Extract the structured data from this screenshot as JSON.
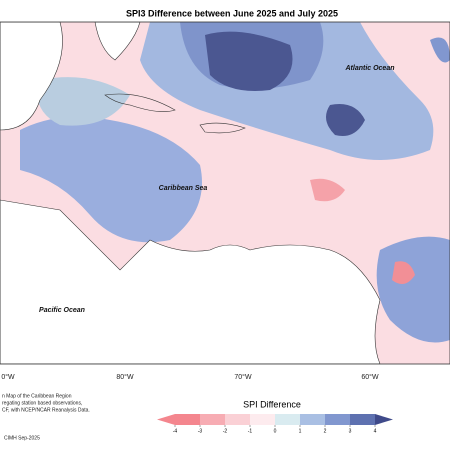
{
  "map": {
    "title": "SPI3 Difference between June 2025 and July 2025",
    "labels": [
      "Atlantic Ocean",
      "Caribbean Sea",
      "Pacific Ocean"
    ],
    "longitudes": [
      "0°W",
      "80°W",
      "70°W",
      "60°W"
    ],
    "footnote": [
      "n Map of the Caribbean Region",
      "regating station based observations,",
      "CF, with NCEP/NCAR Reanalysis Data."
    ],
    "credit": "CIMH Sep-2025"
  },
  "legend": {
    "title": "SPI Difference",
    "ticks": [
      -4,
      -3,
      -2,
      -1,
      0,
      1,
      2,
      3,
      4
    ],
    "colors": [
      "#f4868e",
      "#f7acb3",
      "#fad0d5",
      "#fdebee",
      "#d9ebf0",
      "#a9bfe3",
      "#8197cf",
      "#5e71b0",
      "#3f4a8a"
    ]
  }
}
